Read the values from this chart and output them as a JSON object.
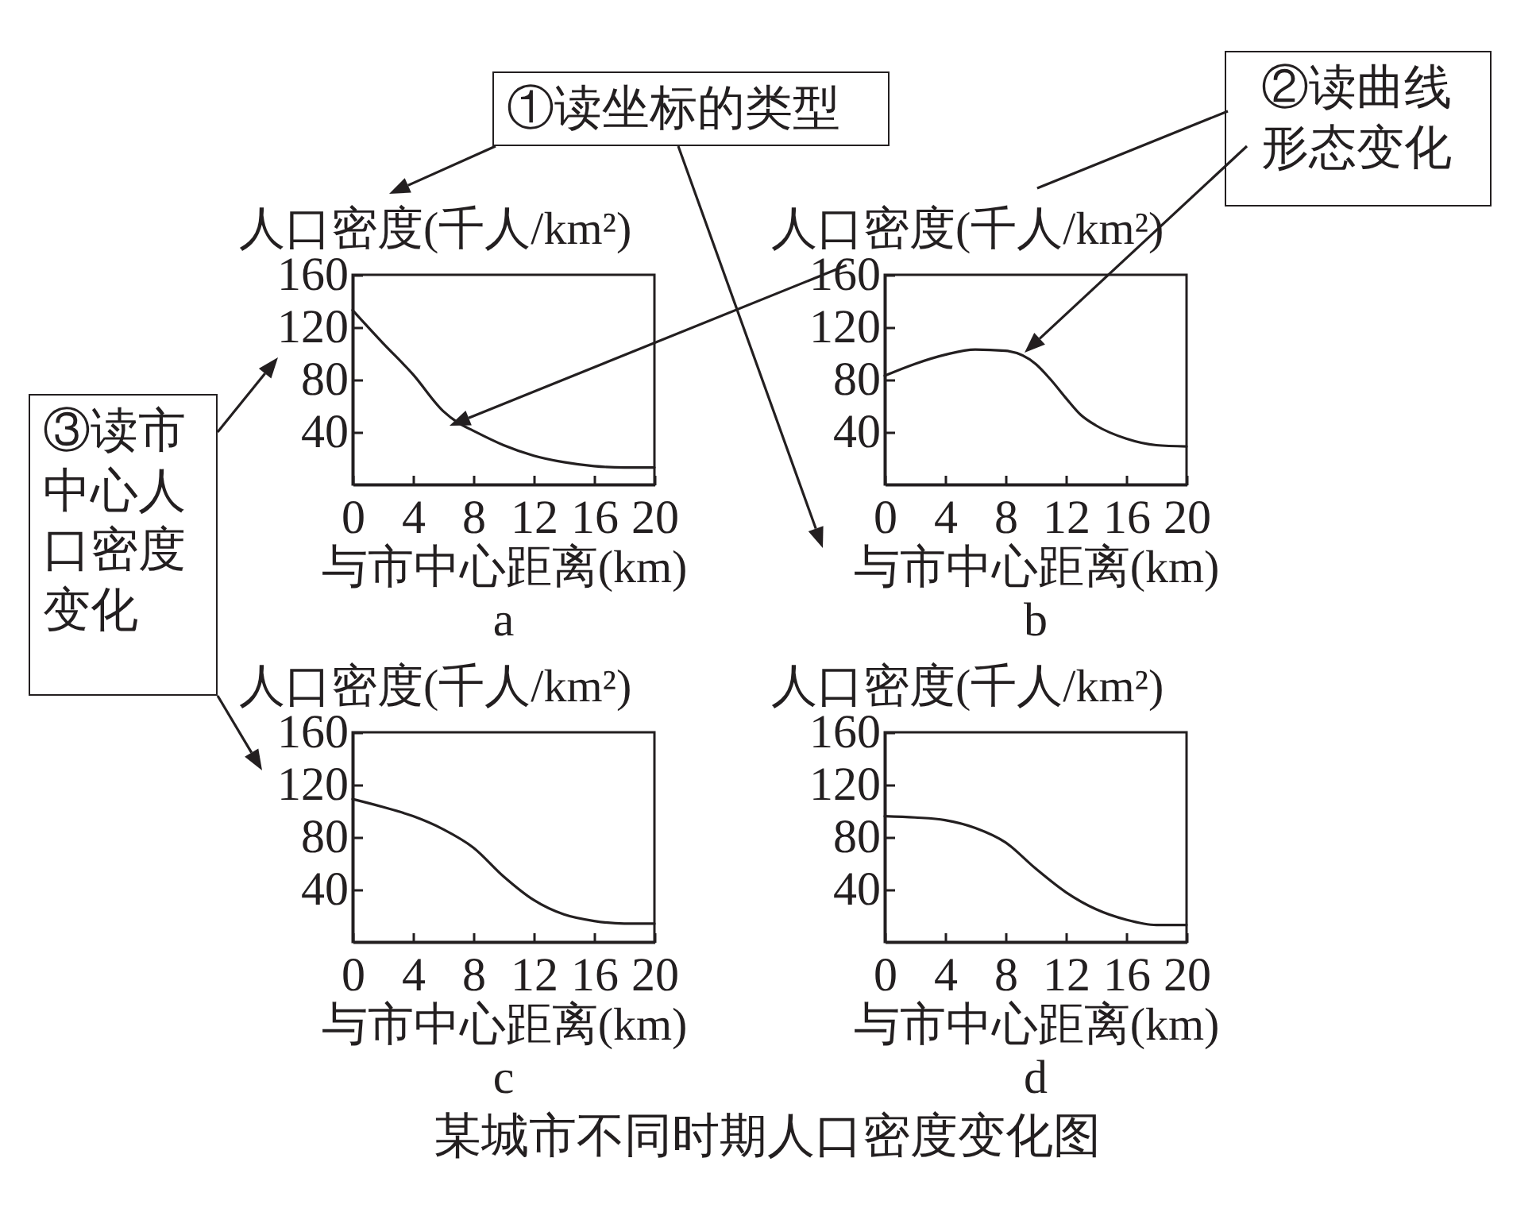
{
  "chart_data": [
    {
      "type": "line",
      "title": "a",
      "xlabel": "与市中心距离(km)",
      "ylabel": "人口密度(千人/km²)",
      "xlim": [
        0,
        20
      ],
      "ylim": [
        0,
        160
      ],
      "xticks": [
        0,
        4,
        8,
        12,
        16,
        20
      ],
      "yticks": [
        40,
        80,
        120,
        160
      ],
      "x": [
        0,
        2,
        4,
        6,
        7,
        8,
        10,
        12,
        14,
        16,
        18,
        20
      ],
      "series": [
        {
          "color": "#231f20",
          "values": [
            133,
            108,
            84,
            56,
            47,
            41,
            30,
            22,
            17,
            14,
            13,
            13
          ]
        }
      ],
      "annotations": [
        "①读坐标的类型",
        "②读曲线形态变化",
        "③读市中心人口密度变化"
      ]
    },
    {
      "type": "line",
      "title": "b",
      "xlabel": "与市中心距离(km)",
      "ylabel": "人口密度(千人/km²)",
      "xlim": [
        0,
        20
      ],
      "ylim": [
        0,
        160
      ],
      "xticks": [
        0,
        4,
        8,
        12,
        16,
        20
      ],
      "yticks": [
        40,
        80,
        120,
        160
      ],
      "x": [
        0,
        2,
        4,
        6,
        8,
        10,
        11,
        12,
        13,
        14,
        16,
        18,
        20
      ],
      "series": [
        {
          "color": "#231f20",
          "values": [
            83,
            92,
            99,
            103,
            102,
            92,
            80,
            66,
            53,
            45,
            35,
            30,
            29
          ]
        }
      ]
    },
    {
      "type": "line",
      "title": "c",
      "xlabel": "与市中心距离(km)",
      "ylabel": "人口密度(千人/km²)",
      "xlim": [
        0,
        20
      ],
      "ylim": [
        0,
        160
      ],
      "xticks": [
        0,
        4,
        8,
        12,
        16,
        20
      ],
      "yticks": [
        40,
        80,
        120,
        160
      ],
      "x": [
        0,
        2,
        4,
        6,
        8,
        10,
        12,
        14,
        16,
        18,
        20
      ],
      "series": [
        {
          "color": "#231f20",
          "values": [
            109,
            103,
            96,
            86,
            72,
            50,
            32,
            21,
            16,
            14,
            14
          ]
        }
      ]
    },
    {
      "type": "line",
      "title": "d",
      "xlabel": "与市中心距离(km)",
      "ylabel": "人口密度(千人/km²)",
      "xlim": [
        0,
        20
      ],
      "ylim": [
        0,
        160
      ],
      "xticks": [
        0,
        4,
        8,
        12,
        16,
        20
      ],
      "yticks": [
        40,
        80,
        120,
        160
      ],
      "x": [
        0,
        2,
        4,
        6,
        8,
        10,
        12,
        14,
        16,
        18,
        20
      ],
      "series": [
        {
          "color": "#231f20",
          "values": [
            96,
            95,
            93,
            87,
            76,
            56,
            38,
            25,
            17,
            13,
            13
          ]
        }
      ],
      "annotations": [
        "某城市不同时期人口密度变化图"
      ]
    }
  ]
}
